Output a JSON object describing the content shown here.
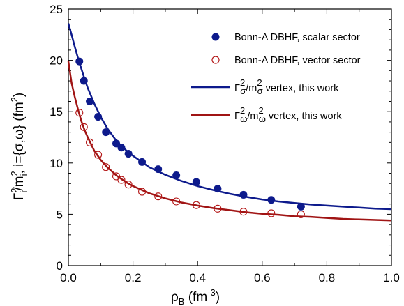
{
  "chart_data": {
    "type": "scatter",
    "xlabel": {
      "base": "ρ",
      "sub": "B",
      "unit_open": " (fm",
      "unit_sup": "-3",
      "unit_close": ")"
    },
    "ylabel": {
      "g": "Γ",
      "g_sup": "2",
      "g_sub": "i",
      "m": "/m",
      "m_sup": "2",
      "m_sub": "i",
      "rest": ", i={σ,ω} (fm",
      "unit_sup": "2",
      "unit_close": ")"
    },
    "xlim": [
      0.0,
      1.0
    ],
    "ylim": [
      0,
      25
    ],
    "x_ticks": [
      "0.0",
      "0.2",
      "0.4",
      "0.6",
      "0.8",
      "1.0"
    ],
    "y_ticks": [
      "0",
      "5",
      "10",
      "15",
      "20",
      "25"
    ],
    "legend_position": "top-right",
    "series": [
      {
        "name": "Bonn-A DBHF, scalar sector",
        "kind": "markers-filled",
        "color": "#0d1a8c",
        "x": [
          0.034,
          0.048,
          0.066,
          0.092,
          0.116,
          0.148,
          0.164,
          0.186,
          0.228,
          0.278,
          0.334,
          0.396,
          0.462,
          0.542,
          0.628,
          0.72
        ],
        "y": [
          19.9,
          18.0,
          16.0,
          14.5,
          13.0,
          11.9,
          11.5,
          10.9,
          10.1,
          9.4,
          8.8,
          8.15,
          7.5,
          6.9,
          6.4,
          5.75
        ]
      },
      {
        "name": "Bonn-A DBHF, vector sector",
        "kind": "markers-open",
        "color": "#b31515",
        "x": [
          0.034,
          0.048,
          0.066,
          0.092,
          0.116,
          0.148,
          0.164,
          0.186,
          0.228,
          0.278,
          0.334,
          0.396,
          0.462,
          0.542,
          0.628,
          0.72
        ],
        "y": [
          14.9,
          13.5,
          12.0,
          10.8,
          9.6,
          8.7,
          8.35,
          7.9,
          7.2,
          6.75,
          6.25,
          5.9,
          5.55,
          5.25,
          5.1,
          5.0
        ]
      },
      {
        "name": "Γσ²/mσ² vertex, this work",
        "legend": {
          "g": "Γ",
          "sub1": "σ",
          "sup1": "2",
          "m": "/m",
          "sub2": "σ",
          "sup2": "2",
          "rest": " vertex, this work"
        },
        "kind": "line",
        "color": "#0d1a8c",
        "x": [
          0.0,
          0.01,
          0.02,
          0.03,
          0.04,
          0.05,
          0.06,
          0.08,
          0.1,
          0.12,
          0.15,
          0.18,
          0.2,
          0.25,
          0.3,
          0.35,
          0.4,
          0.45,
          0.5,
          0.55,
          0.6,
          0.65,
          0.7,
          0.75,
          0.8,
          0.85,
          0.9,
          0.95,
          1.0
        ],
        "y": [
          23.6,
          22.5,
          21.3,
          20.2,
          19.2,
          18.2,
          17.3,
          15.8,
          14.5,
          13.4,
          12.1,
          11.2,
          10.7,
          9.6,
          8.85,
          8.25,
          7.75,
          7.35,
          7.0,
          6.7,
          6.45,
          6.25,
          6.1,
          5.95,
          5.85,
          5.75,
          5.65,
          5.55,
          5.5
        ]
      },
      {
        "name": "Γω²/mω² vertex, this work",
        "legend": {
          "g": "Γ",
          "sub1": "ω",
          "sup1": "2",
          "m": "/m",
          "sub2": "ω",
          "sup2": "2",
          "rest": " vertex, this work"
        },
        "kind": "line",
        "color": "#a01414",
        "x": [
          0.0,
          0.01,
          0.02,
          0.03,
          0.04,
          0.05,
          0.06,
          0.08,
          0.1,
          0.12,
          0.15,
          0.18,
          0.2,
          0.25,
          0.3,
          0.35,
          0.4,
          0.45,
          0.5,
          0.55,
          0.6,
          0.65,
          0.7,
          0.75,
          0.8,
          0.85,
          0.9,
          0.95,
          1.0
        ],
        "y": [
          19.9,
          17.8,
          16.4,
          15.2,
          14.1,
          13.2,
          12.5,
          11.2,
          10.3,
          9.6,
          8.75,
          8.1,
          7.75,
          7.05,
          6.55,
          6.15,
          5.85,
          5.6,
          5.4,
          5.2,
          5.05,
          4.95,
          4.8,
          4.75,
          4.65,
          4.55,
          4.5,
          4.45,
          4.4
        ]
      }
    ]
  }
}
